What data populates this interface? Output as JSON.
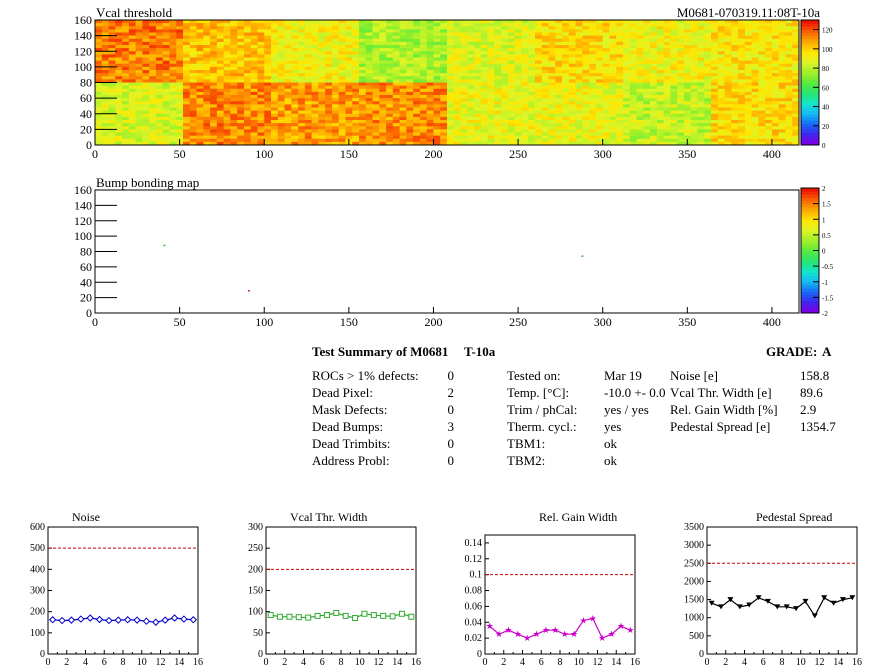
{
  "top_map": {
    "title": "Vcal threshold",
    "id_label": "M0681-070319.11:08T-10a"
  },
  "bump_map": {
    "title": "Bump bonding map"
  },
  "summary": {
    "header": "Test Summary of M0681",
    "temp_label": "T-10a",
    "grade_label": "GRADE:",
    "grade_value": "A",
    "col1": [
      {
        "label": "ROCs > 1% defects:",
        "value": "0"
      },
      {
        "label": "Dead Pixel:",
        "value": "2"
      },
      {
        "label": "Mask Defects:",
        "value": "0"
      },
      {
        "label": "Dead Bumps:",
        "value": "3"
      },
      {
        "label": "Dead Trimbits:",
        "value": "0"
      },
      {
        "label": "Address Probl:",
        "value": "0"
      }
    ],
    "col2": [
      {
        "label": "Tested on:",
        "value": "Mar 19"
      },
      {
        "label": "Temp. [°C]:",
        "value": "-10.0 +- 0.0"
      },
      {
        "label": "Trim / phCal:",
        "value": "yes / yes"
      },
      {
        "label": "Therm. cycl.:",
        "value": "yes"
      },
      {
        "label": "TBM1:",
        "value": "ok"
      },
      {
        "label": "TBM2:",
        "value": "ok"
      }
    ],
    "col3": [
      {
        "label": "Noise [e]",
        "value": "158.8"
      },
      {
        "label": "Vcal Thr. Width [e]",
        "value": "89.6"
      },
      {
        "label": "Rel. Gain Width [%]",
        "value": "2.9"
      },
      {
        "label": "Pedestal Spread [e]",
        "value": "1354.7"
      }
    ]
  },
  "chart_data": [
    {
      "type": "heatmap",
      "title": "Vcal threshold",
      "x_ticks": [
        0,
        50,
        100,
        150,
        200,
        250,
        300,
        350,
        400
      ],
      "y_ticks": [
        0,
        20,
        40,
        60,
        80,
        100,
        120,
        140,
        160
      ],
      "xlim": [
        0,
        416
      ],
      "ylim": [
        0,
        160
      ],
      "z_ticks": [
        "0",
        "20",
        "40",
        "60",
        "80",
        "100",
        "120"
      ],
      "zlim": [
        0,
        130
      ],
      "roc_mean_values": {
        "upper_row_x0_to_x7": [
          115,
          103,
          92,
          78,
          88,
          98,
          92,
          96
        ],
        "lower_row_x0_to_x7": [
          86,
          113,
          110,
          112,
          90,
          90,
          82,
          98
        ]
      }
    },
    {
      "type": "heatmap",
      "title": "Bump bonding map",
      "x_ticks": [
        0,
        50,
        100,
        150,
        200,
        250,
        300,
        350,
        400
      ],
      "y_ticks": [
        0,
        20,
        40,
        60,
        80,
        100,
        120,
        140,
        160
      ],
      "xlim": [
        0,
        416
      ],
      "ylim": [
        0,
        160
      ],
      "z_ticks": [
        "-2",
        "-1.5",
        "-1",
        "-0.5",
        "0",
        "0.5",
        "1",
        "1.5",
        "2"
      ],
      "zlim": [
        -2,
        2
      ],
      "points": [
        {
          "x": 41,
          "y": 88,
          "color": "#30c030"
        },
        {
          "x": 91,
          "y": 29,
          "color": "#e02060"
        },
        {
          "x": 288,
          "y": 74,
          "color": "#30c030"
        }
      ]
    },
    {
      "type": "line",
      "title": "Noise",
      "x": [
        0,
        1,
        2,
        3,
        4,
        5,
        6,
        7,
        8,
        9,
        10,
        11,
        12,
        13,
        14,
        15
      ],
      "values": [
        162,
        158,
        160,
        165,
        170,
        163,
        158,
        160,
        162,
        160,
        155,
        150,
        160,
        170,
        165,
        162
      ],
      "xlim": [
        0,
        16
      ],
      "ylim": [
        0,
        600
      ],
      "x_ticks": [
        0,
        2,
        4,
        6,
        8,
        10,
        12,
        14,
        16
      ],
      "y_ticks": [
        0,
        100,
        200,
        300,
        400,
        500,
        600
      ],
      "limit_line": 500,
      "color": "#0000cc",
      "marker": "diamond-open"
    },
    {
      "type": "line",
      "title": "Vcal Thr. Width",
      "x": [
        0,
        1,
        2,
        3,
        4,
        5,
        6,
        7,
        8,
        9,
        10,
        11,
        12,
        13,
        14,
        15
      ],
      "values": [
        92,
        88,
        88,
        87,
        86,
        90,
        92,
        97,
        90,
        85,
        95,
        92,
        90,
        89,
        95,
        88
      ],
      "xlim": [
        0,
        16
      ],
      "ylim": [
        0,
        300
      ],
      "x_ticks": [
        0,
        2,
        4,
        6,
        8,
        10,
        12,
        14,
        16
      ],
      "y_ticks": [
        0,
        50,
        100,
        150,
        200,
        250,
        300
      ],
      "limit_line": 200,
      "color": "#33aa33",
      "marker": "square-open"
    },
    {
      "type": "line",
      "title": "Rel. Gain Width",
      "x": [
        0,
        1,
        2,
        3,
        4,
        5,
        6,
        7,
        8,
        9,
        10,
        11,
        12,
        13,
        14,
        15
      ],
      "values": [
        0.035,
        0.025,
        0.03,
        0.025,
        0.02,
        0.025,
        0.03,
        0.03,
        0.025,
        0.025,
        0.042,
        0.045,
        0.02,
        0.025,
        0.035,
        0.03
      ],
      "xlim": [
        0,
        16
      ],
      "ylim": [
        0,
        0.15
      ],
      "x_ticks": [
        0,
        2,
        4,
        6,
        8,
        10,
        12,
        14,
        16
      ],
      "y_ticks": [
        0,
        0.02,
        0.04,
        0.06,
        0.08,
        0.1,
        0.12,
        0.14
      ],
      "y_tick_labels": [
        "0",
        "0.02",
        "0.04",
        "0.06",
        "0.08",
        "0.1",
        "0.12",
        "0.14"
      ],
      "limit_line": 0.1,
      "color": "#cc00cc",
      "marker": "star"
    },
    {
      "type": "line",
      "title": "Pedestal Spread",
      "x": [
        0,
        1,
        2,
        3,
        4,
        5,
        6,
        7,
        8,
        9,
        10,
        11,
        12,
        13,
        14,
        15
      ],
      "values": [
        1400,
        1300,
        1500,
        1300,
        1350,
        1550,
        1450,
        1300,
        1300,
        1250,
        1450,
        1050,
        1550,
        1400,
        1500,
        1550
      ],
      "xlim": [
        0,
        16
      ],
      "ylim": [
        0,
        3500
      ],
      "x_ticks": [
        0,
        2,
        4,
        6,
        8,
        10,
        12,
        14,
        16
      ],
      "y_ticks": [
        0,
        500,
        1000,
        1500,
        2000,
        2500,
        3000,
        3500
      ],
      "limit_line": 2500,
      "color": "#000000",
      "marker": "triangle-down"
    }
  ]
}
